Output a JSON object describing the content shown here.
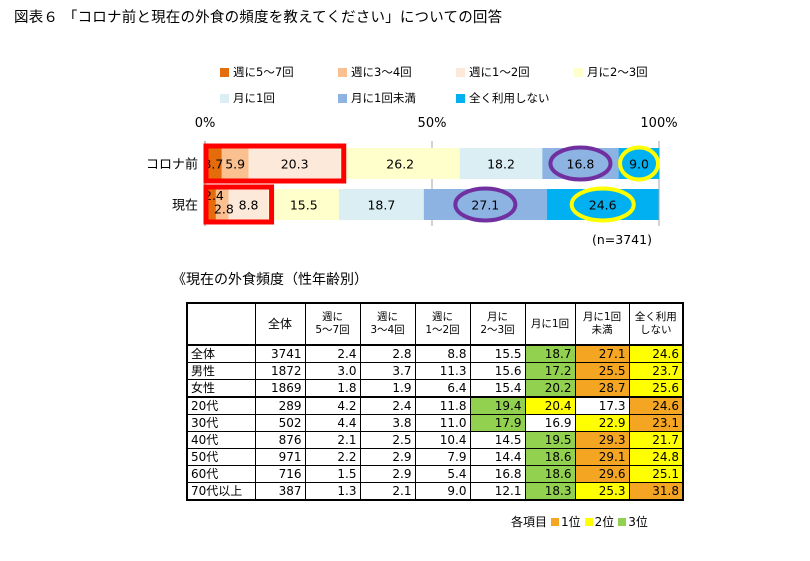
{
  "title": "図表６ 「コロナ前と現在の外食の頻度を教えてください」についての回答",
  "chart_data": {
    "type": "bar",
    "orientation": "horizontal",
    "stacked": true,
    "xlim": [
      0,
      100
    ],
    "x_ticks": [
      "0%",
      "50%",
      "100%"
    ],
    "categories": [
      "コロナ前",
      "現在"
    ],
    "series": [
      {
        "name": "週に5～7回",
        "color": "#e46c0a",
        "values": [
          3.7,
          2.4
        ]
      },
      {
        "name": "週に3～4回",
        "color": "#fac090",
        "values": [
          5.9,
          2.8
        ]
      },
      {
        "name": "週に1～2回",
        "color": "#fde9d9",
        "values": [
          20.3,
          8.8
        ]
      },
      {
        "name": "月に2～3回",
        "color": "#ffffcc",
        "values": [
          26.2,
          15.5
        ]
      },
      {
        "name": "月に1回",
        "color": "#dbeef4",
        "values": [
          18.2,
          18.7
        ]
      },
      {
        "name": "月に1回未満",
        "color": "#8db3e2",
        "values": [
          16.8,
          27.1
        ]
      },
      {
        "name": "全く利用しない",
        "color": "#00b0f0",
        "values": [
          9.0,
          24.6
        ]
      }
    ],
    "legend_position": "top",
    "note": "(n=3741)"
  },
  "table": {
    "subtitle": "《現在の外食頻度（性年齢別）",
    "headers": [
      "",
      "全体",
      "週に\n5～7回",
      "週に\n3～4回",
      "週に\n1～2回",
      "月に\n2～3回",
      "月に1回",
      "月に1回\n未満",
      "全く利用\nしない"
    ],
    "rows": [
      {
        "label": "全体",
        "values": [
          "3741",
          "2.4",
          "2.8",
          "8.8",
          "15.5",
          "18.7",
          "27.1",
          "24.6"
        ],
        "ranks": [
          0,
          0,
          0,
          0,
          0,
          3,
          1,
          2
        ]
      },
      {
        "label": "男性",
        "values": [
          "1872",
          "3.0",
          "3.7",
          "11.3",
          "15.6",
          "17.2",
          "25.5",
          "23.7"
        ],
        "ranks": [
          0,
          0,
          0,
          0,
          0,
          3,
          1,
          2
        ]
      },
      {
        "label": "女性",
        "values": [
          "1869",
          "1.8",
          "1.9",
          "6.4",
          "15.4",
          "20.2",
          "28.7",
          "25.6"
        ],
        "ranks": [
          0,
          0,
          0,
          0,
          0,
          3,
          1,
          2
        ]
      },
      {
        "label": "20代",
        "values": [
          "289",
          "4.2",
          "2.4",
          "11.8",
          "19.4",
          "20.4",
          "17.3",
          "24.6"
        ],
        "ranks": [
          0,
          0,
          0,
          0,
          3,
          2,
          0,
          1
        ]
      },
      {
        "label": "30代",
        "values": [
          "502",
          "4.4",
          "3.8",
          "11.0",
          "17.9",
          "16.9",
          "22.9",
          "23.1"
        ],
        "ranks": [
          0,
          0,
          0,
          0,
          3,
          0,
          2,
          1
        ]
      },
      {
        "label": "40代",
        "values": [
          "876",
          "2.1",
          "2.5",
          "10.4",
          "14.5",
          "19.5",
          "29.3",
          "21.7"
        ],
        "ranks": [
          0,
          0,
          0,
          0,
          0,
          3,
          1,
          2
        ]
      },
      {
        "label": "50代",
        "values": [
          "971",
          "2.2",
          "2.9",
          "7.9",
          "14.4",
          "18.6",
          "29.1",
          "24.8"
        ],
        "ranks": [
          0,
          0,
          0,
          0,
          0,
          3,
          1,
          2
        ]
      },
      {
        "label": "60代",
        "values": [
          "716",
          "1.5",
          "2.9",
          "5.4",
          "16.8",
          "18.6",
          "29.6",
          "25.1"
        ],
        "ranks": [
          0,
          0,
          0,
          0,
          0,
          3,
          1,
          2
        ]
      },
      {
        "label": "70代以上",
        "values": [
          "387",
          "1.3",
          "2.1",
          "9.0",
          "12.1",
          "18.3",
          "25.3",
          "31.8"
        ],
        "ranks": [
          0,
          0,
          0,
          0,
          0,
          3,
          2,
          1
        ]
      }
    ],
    "rank_legend": {
      "prefix": "各項目",
      "items": [
        {
          "label": "1位",
          "color": "#f4a521"
        },
        {
          "label": "2位",
          "color": "#ffff00"
        },
        {
          "label": "3位",
          "color": "#92d050"
        }
      ]
    }
  }
}
